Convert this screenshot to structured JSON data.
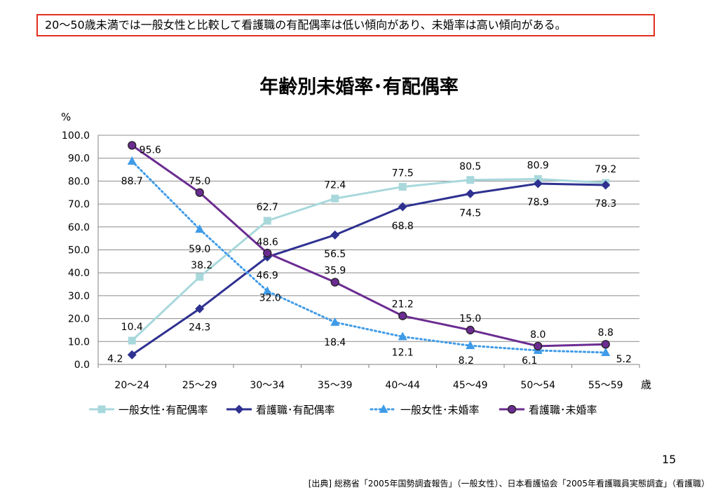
{
  "headline": "20〜50歳未満では一般女性と比較して看護職の有配偶率は低い傾向があり、未婚率は高い傾向がある。",
  "page_number": "15",
  "source": "[出典] 総務省「2005年国勢調査報告」（一般女性）、日本看護協会「2005年看護職員実態調査」（看護職）",
  "colors": {
    "general_married": "#a8d8dc",
    "nurse_married": "#2e3190",
    "general_unmarried": "#3f9be8",
    "nurse_unmarried": "#6b2c91"
  },
  "chart_data": {
    "type": "line",
    "title": "年齢別未婚率･有配偶率",
    "ylabel": "%",
    "xlabel": "歳",
    "ylim": [
      0,
      100
    ],
    "yticks": [
      "0.0",
      "10.0",
      "20.0",
      "30.0",
      "40.0",
      "50.0",
      "60.0",
      "70.0",
      "80.0",
      "90.0",
      "100.0"
    ],
    "grid": true,
    "legend_position": "bottom",
    "categories": [
      "20〜24",
      "25〜29",
      "30〜34",
      "35〜39",
      "40〜44",
      "45〜49",
      "50〜54",
      "55〜59"
    ],
    "series": [
      {
        "name": "一般女性･有配偶率",
        "values": [
          10.4,
          38.2,
          62.7,
          72.4,
          77.5,
          80.5,
          80.9,
          79.2
        ],
        "labels": [
          "10.4",
          "38.2",
          "62.7",
          "72.4",
          "77.5",
          "80.5",
          "80.9",
          "79.2"
        ],
        "marker": "square",
        "line_style": "solid",
        "color": "#a8d8dc"
      },
      {
        "name": "看護職･有配偶率",
        "values": [
          4.2,
          24.3,
          46.9,
          56.5,
          68.8,
          74.5,
          78.9,
          78.3
        ],
        "labels": [
          "4.2",
          "24.3",
          "46.9",
          "56.5",
          "68.8",
          "74.5",
          "78.9",
          "78.3"
        ],
        "marker": "diamond",
        "line_style": "solid",
        "color": "#2e3190"
      },
      {
        "name": "一般女性･未婚率",
        "values": [
          88.7,
          59.0,
          32.0,
          18.4,
          12.1,
          8.2,
          6.1,
          5.2
        ],
        "labels": [
          "88.7",
          "59.0",
          "32.0",
          "18.4",
          "12.1",
          "8.2",
          "6.1",
          "5.2"
        ],
        "marker": "triangle",
        "line_style": "dotted",
        "color": "#3f9be8"
      },
      {
        "name": "看護職･未婚率",
        "values": [
          95.6,
          75.0,
          48.6,
          35.9,
          21.2,
          15.0,
          8.0,
          8.8
        ],
        "labels": [
          "95.6",
          "75.0",
          "48.6",
          "35.9",
          "21.2",
          "15.0",
          "8.0",
          "8.8"
        ],
        "marker": "circle",
        "line_style": "solid",
        "color": "#6b2c91"
      }
    ]
  }
}
